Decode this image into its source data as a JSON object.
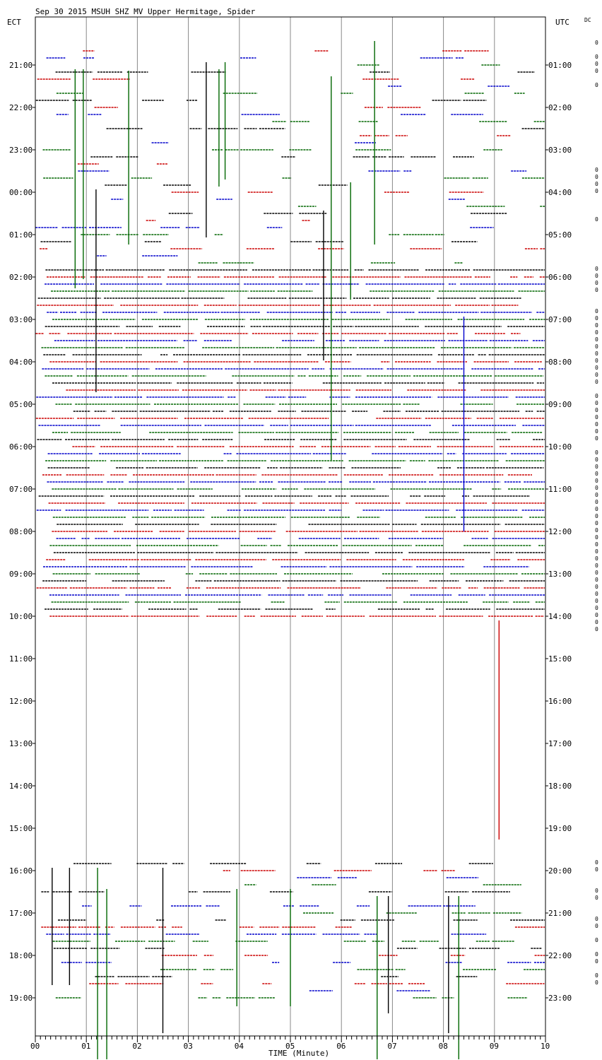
{
  "chart_data": {
    "type": "line",
    "title": "Sep 30 2015 MSUH SHZ MV Upper Hermitage, Spider",
    "left_axis_label": "ECT",
    "right_axis_label": "UTC",
    "dc_label": "DC",
    "xlabel": "TIME (Minute)",
    "x_ticks": [
      "00",
      "01",
      "02",
      "03",
      "04",
      "05",
      "06",
      "07",
      "08",
      "09",
      "10"
    ],
    "xlim": [
      0,
      10
    ],
    "ect_labels": [
      "21:00",
      "22:00",
      "23:00",
      "00:00",
      "01:00",
      "02:00",
      "03:00",
      "04:00",
      "05:00",
      "06:00",
      "07:00",
      "08:00",
      "09:00",
      "10:00",
      "11:00",
      "12:00",
      "13:00",
      "14:00",
      "15:00",
      "16:00",
      "17:00",
      "18:00",
      "19:00"
    ],
    "utc_labels": [
      "01:00",
      "02:00",
      "03:00",
      "04:00",
      "05:00",
      "06:00",
      "07:00",
      "08:00",
      "09:00",
      "10:00",
      "11:00",
      "12:00",
      "13:00",
      "14:00",
      "15:00",
      "16:00",
      "17:00",
      "18:00",
      "19:00",
      "20:00",
      "21:00",
      "22:00",
      "23:00"
    ],
    "line_colors": [
      "#000000",
      "#cc0000",
      "#0000cc",
      "#006600"
    ],
    "grid": "vertical minute lines",
    "trace_spacing_minutes": 10,
    "trace_rows_per_hour": 6
  }
}
